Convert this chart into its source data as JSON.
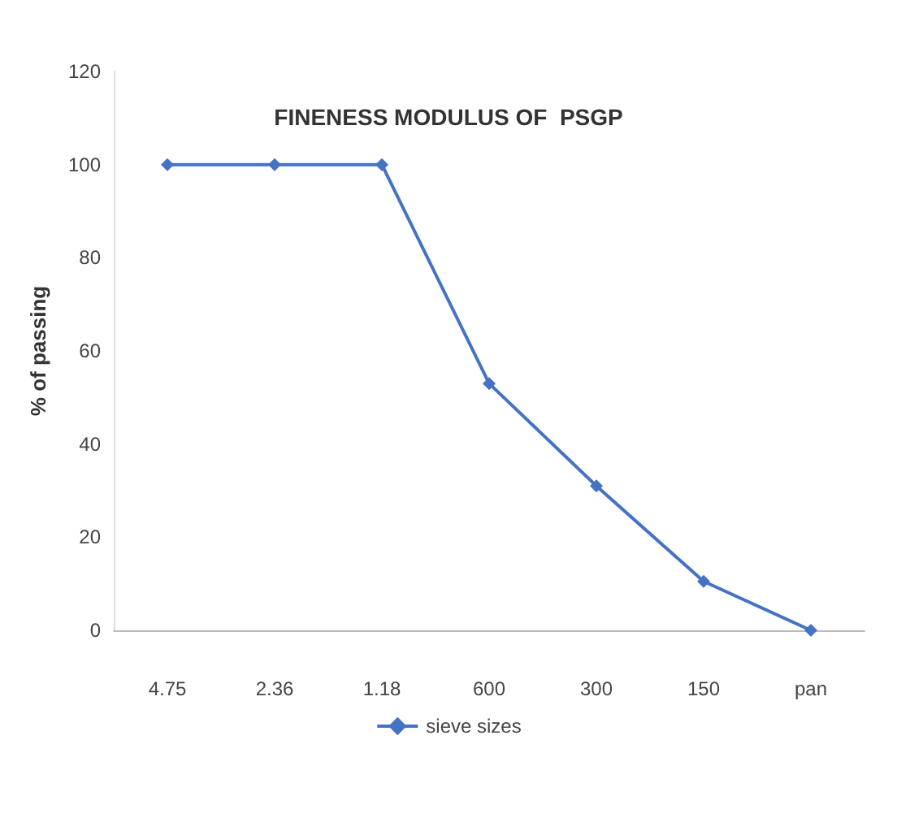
{
  "chart_data": {
    "type": "line",
    "title": "FINENESS MODULUS OF  PSGP",
    "ylabel": "% of passing",
    "categories": [
      "4.75",
      "2.36",
      "1.18",
      "600",
      "300",
      "150",
      "pan"
    ],
    "series": [
      {
        "name": "sieve sizes",
        "color": "#4472c4",
        "values": [
          100,
          100,
          100,
          53,
          31,
          10.5,
          0
        ]
      }
    ],
    "ylim": [
      0,
      120
    ],
    "yticks": [
      0,
      20,
      40,
      60,
      80,
      100,
      120
    ],
    "grid": false,
    "legend": "bottom",
    "marker": "diamond"
  }
}
